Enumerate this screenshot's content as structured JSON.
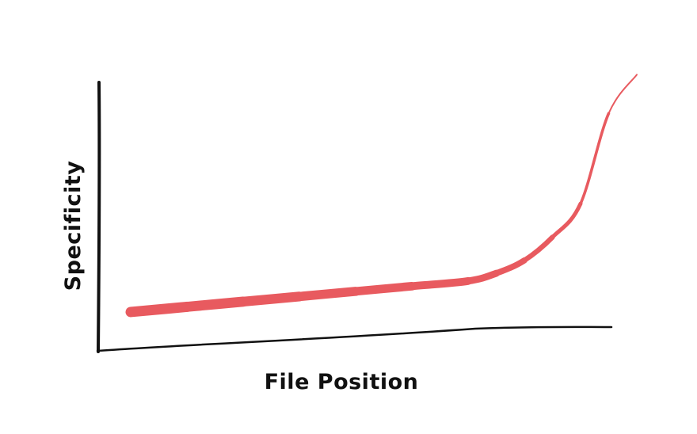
{
  "chart_data": {
    "type": "line",
    "title": "",
    "xlabel": "File Position",
    "ylabel": "Specificity",
    "grid": false,
    "legend": "none",
    "x": [
      0,
      0.1,
      0.2,
      0.3,
      0.4,
      0.5,
      0.6,
      0.65,
      0.7,
      0.75,
      0.8,
      0.85,
      0.9
    ],
    "series": [
      {
        "values": [
          0.08,
          0.1,
          0.12,
          0.14,
          0.16,
          0.18,
          0.2,
          0.23,
          0.28,
          0.37,
          0.5,
          0.85,
          1.0
        ],
        "color": "#e85a5f"
      }
    ],
    "xlim": [
      0,
      1
    ],
    "ylim": [
      0,
      1.05
    ],
    "colors": {
      "axis": "#111111",
      "curve": "#e85a5f"
    }
  }
}
